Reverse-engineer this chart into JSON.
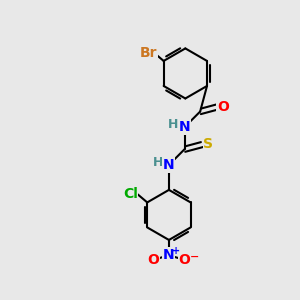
{
  "bg_color": "#e8e8e8",
  "atom_colors": {
    "Br": "#cc7722",
    "N": "#0000ff",
    "O": "#ff0000",
    "S": "#ccaa00",
    "Cl": "#00aa00",
    "C": "#000000",
    "H": "#4a9090"
  },
  "bond_lw": 1.5,
  "font_size": 9
}
